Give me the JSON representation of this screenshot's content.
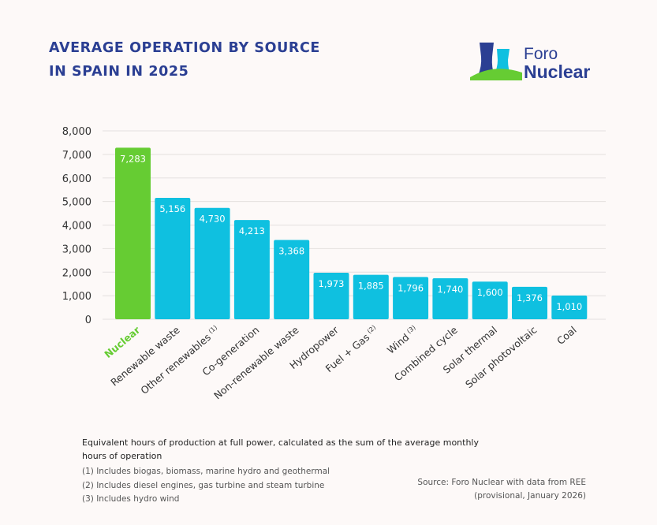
{
  "title": {
    "line1": "AVERAGE OPERATION BY SOURCE",
    "line2": "IN SPAIN IN 2025"
  },
  "logo": {
    "line1": "Foro",
    "line2": "Nuclear"
  },
  "colors": {
    "highlight": "#66cc33",
    "bar": "#0fc0e0",
    "title": "#2b3f93"
  },
  "chart_data": {
    "type": "bar",
    "categories": [
      "Nuclear",
      "Renewable waste",
      "Other renewables",
      "Co-generation",
      "Non-renewable waste",
      "Hydropower",
      "Fuel + Gas",
      "Wind",
      "Combined cycle",
      "Solar thermal",
      "Solar photovoltaic",
      "Coal"
    ],
    "category_marks": [
      "",
      "",
      "(1)",
      "",
      "",
      "",
      "(2)",
      "(3)",
      "",
      "",
      "",
      ""
    ],
    "values": [
      7283,
      5156,
      4730,
      4213,
      3368,
      1973,
      1885,
      1796,
      1740,
      1600,
      1376,
      1010
    ],
    "value_labels": [
      "7,283",
      "5,156",
      "4,730",
      "4,213",
      "3,368",
      "1,973",
      "1,885",
      "1,796",
      "1,740",
      "1,600",
      "1,376",
      "1,010"
    ],
    "highlighted_index": 0,
    "ylim": [
      0,
      8000
    ],
    "yticks": [
      "0",
      "1,000",
      "2,000",
      "3,000",
      "4,000",
      "5,000",
      "6,000",
      "7,000",
      "8,000"
    ],
    "grid": true
  },
  "notes": {
    "description": "Equivalent hours of production at full power, calculated as the sum of the average monthly hours of operation",
    "footnote1": "(1)  Includes biogas, biomass, marine hydro and geothermal",
    "footnote2": "(2) Includes diesel engines, gas turbine and steam turbine",
    "footnote3": "(3) Includes hydro wind"
  },
  "source": {
    "line1": "Source: Foro Nuclear with data from REE",
    "line2": "(provisional, January 2026)"
  }
}
